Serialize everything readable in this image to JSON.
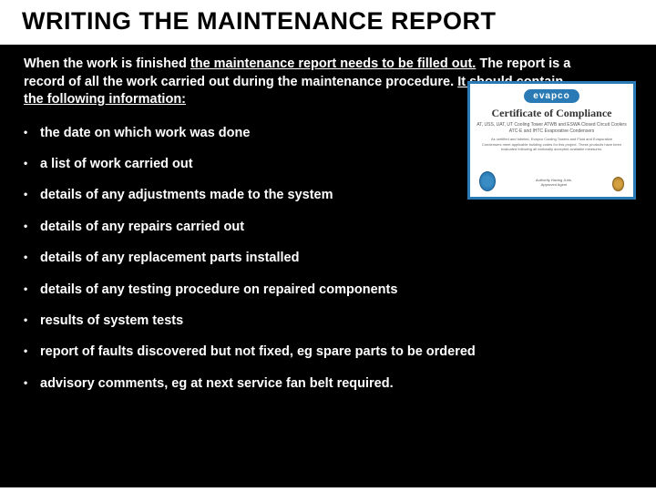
{
  "title": "WRITING THE MAINTENANCE REPORT",
  "intro": {
    "part1": "When the work is finished ",
    "underlined1": "the maintenance report needs to be filled out.",
    "part2": " The report is a record of all the work carried out during the maintenance procedure. ",
    "underlined2": "It should contain the following information:"
  },
  "items": [
    "the date on which work was done",
    "a list of work carried out",
    "details of any adjustments made to the system",
    "details of any repairs carried out",
    "details of any replacement parts installed",
    "details of any testing procedure on repaired components",
    "results of system tests",
    "report of faults discovered but not fixed, eg spare parts to be ordered",
    "advisory comments, eg at next service fan belt required."
  ],
  "certificate": {
    "logo": "evapco",
    "title": "Certificate of Compliance",
    "subtitle": "AT, USS, UAT, UT Cooling Tower\nATWB and ESWA Closed Circuit Coolers\nATC-E and IHTC Evaporative Condensers",
    "body": "As certified and labeled, Evapco Cooling Towers and Fluid and Evaporative Condensers meet applicable building codes for this project.\nThese products have been evaluated following all nationally accepted available measures.",
    "sig1": "Authority Having Juris.",
    "sig2": "Approved Agent"
  },
  "colors": {
    "bg_content": "#000000",
    "text_light": "#ffffff",
    "text_dark": "#000000",
    "cert_border": "#2a7bb5"
  }
}
